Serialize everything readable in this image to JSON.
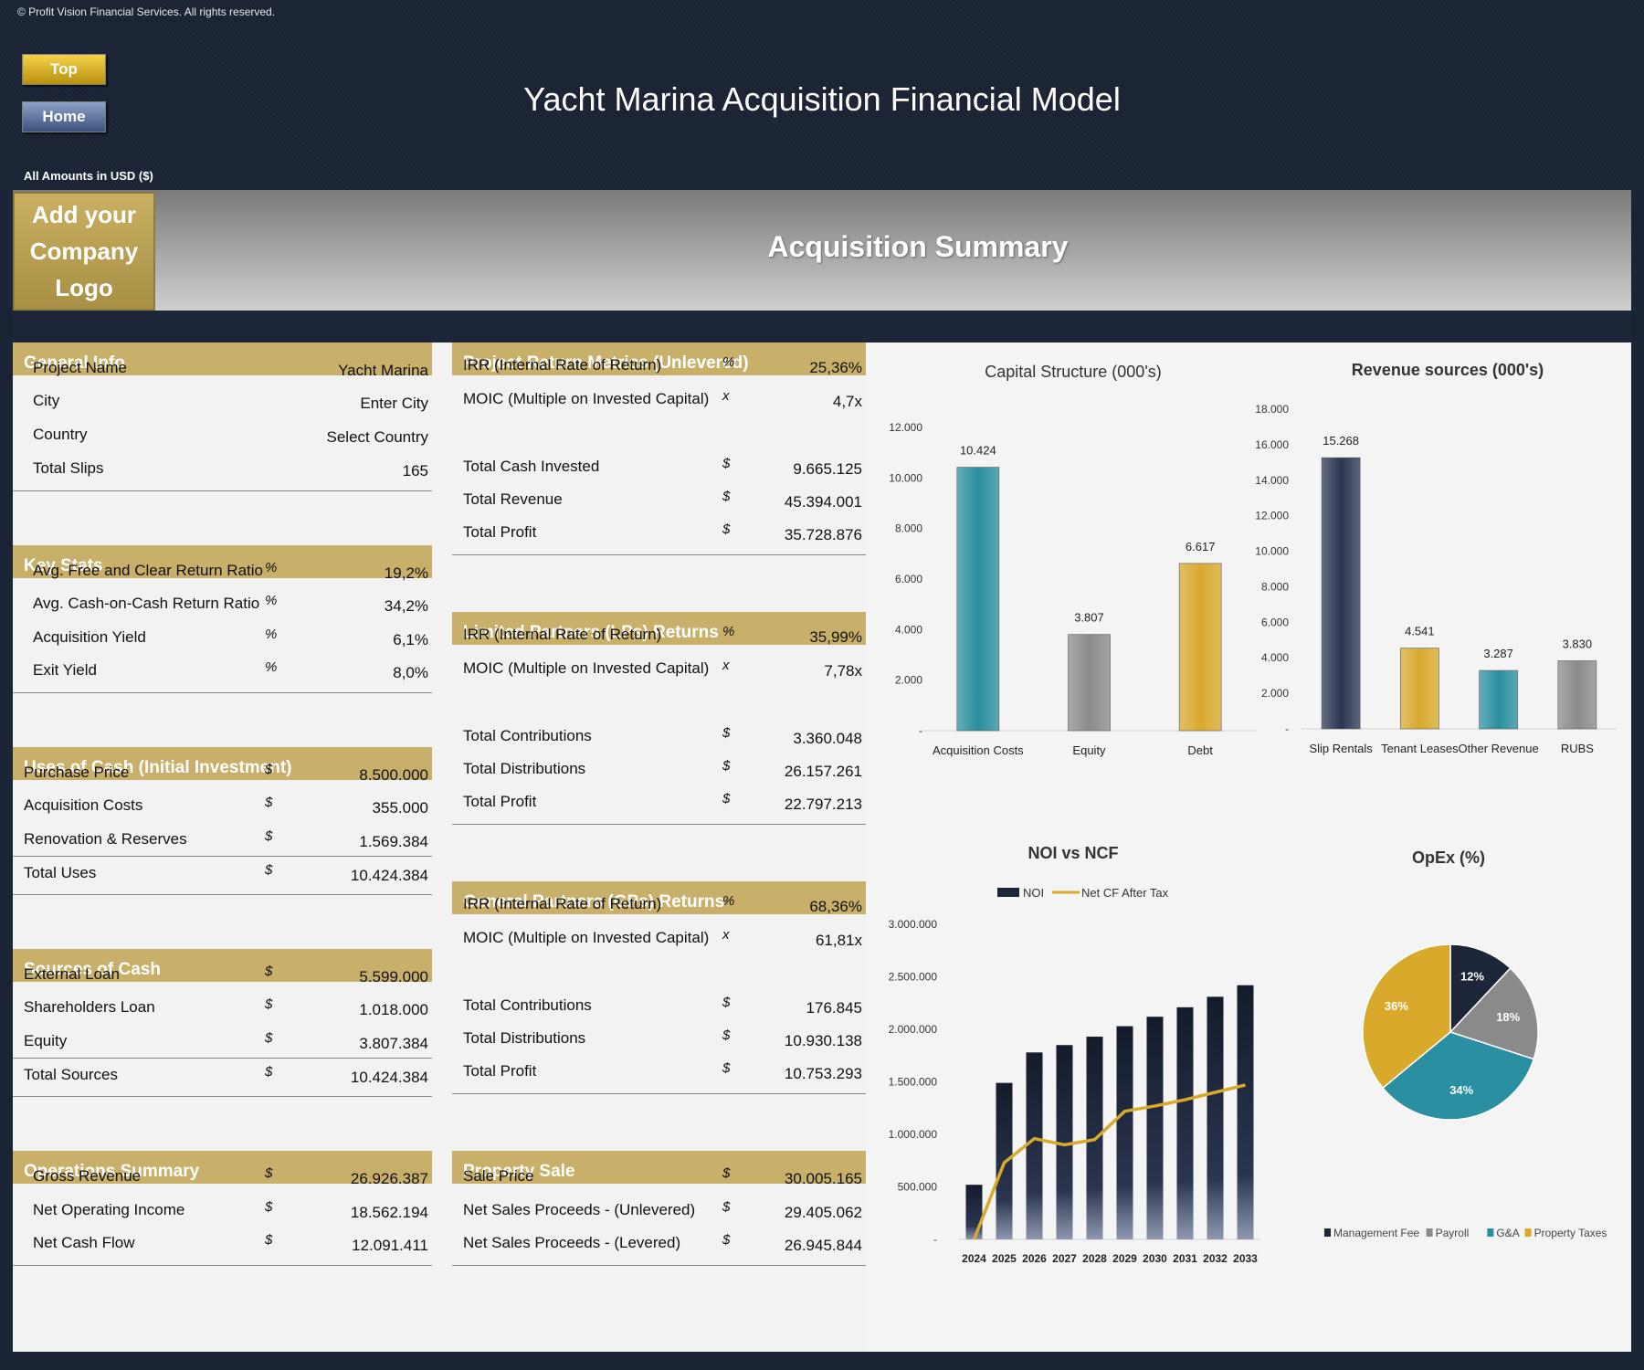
{
  "header": {
    "copyright": "© Profit Vision Financial Services. All rights reserved.",
    "top_button": "Top",
    "home_button": "Home",
    "title": "Yacht Marina Acquisition Financial Model",
    "amounts_note": "All Amounts in  USD ($)"
  },
  "banner": {
    "logo_text": "Add your Company Logo",
    "section_title": "Acquisition Summary"
  },
  "general_info": {
    "title": "General Info",
    "rows": [
      {
        "label": "Project Name",
        "unit": "",
        "value": "Yacht Marina"
      },
      {
        "label": "City",
        "unit": "",
        "value": "Enter City"
      },
      {
        "label": "Country",
        "unit": "",
        "value": "Select Country"
      },
      {
        "label": "Total Slips",
        "unit": "",
        "value": "165"
      }
    ]
  },
  "key_stats": {
    "title": "Key Stats",
    "rows": [
      {
        "label": "Avg. Free and Clear Return Ratio",
        "unit": "%",
        "value": "19,2%"
      },
      {
        "label": "Avg. Cash-on-Cash Return Ratio",
        "unit": "%",
        "value": "34,2%"
      },
      {
        "label": "Acquisition Yield",
        "unit": "%",
        "value": "6,1%"
      },
      {
        "label": "Exit Yield",
        "unit": "%",
        "value": "8,0%"
      }
    ]
  },
  "uses_of_cash": {
    "title": "Uses of Cash (Initial Investment)",
    "rows": [
      {
        "label": "Purchase Price",
        "unit": "$",
        "value": "8.500.000"
      },
      {
        "label": "Acquisition Costs",
        "unit": "$",
        "value": "355.000"
      },
      {
        "label": "Renovation & Reserves",
        "unit": "$",
        "value": "1.569.384"
      },
      {
        "label": "Total Uses",
        "unit": "$",
        "value": "10.424.384"
      }
    ]
  },
  "sources_of_cash": {
    "title": "Sources of Cash",
    "rows": [
      {
        "label": "External Loan",
        "unit": "$",
        "value": "5.599.000"
      },
      {
        "label": "Shareholders Loan",
        "unit": "$",
        "value": "1.018.000"
      },
      {
        "label": "Equity",
        "unit": "$",
        "value": "3.807.384"
      },
      {
        "label": "Total Sources",
        "unit": "$",
        "value": "10.424.384"
      }
    ]
  },
  "operations_summary": {
    "title": "Operations Summary",
    "rows": [
      {
        "label": "Gross Revenue",
        "unit": "$",
        "value": "26.926.387"
      },
      {
        "label": "Net Operating Income",
        "unit": "$",
        "value": "18.562.194"
      },
      {
        "label": "Net Cash Flow",
        "unit": "$",
        "value": "12.091.411"
      }
    ]
  },
  "project_returns": {
    "title": "Project Return Metrics (Unlevered)",
    "rows": [
      {
        "label": "IRR (Internal Rate of Return)",
        "unit": "%",
        "value": "25,36%"
      },
      {
        "label": "MOIC (Multiple on Invested Capital)",
        "unit": "x",
        "value": "4,7x"
      },
      {
        "label": "Total Cash Invested",
        "unit": "$",
        "value": "9.665.125"
      },
      {
        "label": "Total Revenue",
        "unit": "$",
        "value": "45.394.001"
      },
      {
        "label": "Total Profit",
        "unit": "$",
        "value": "35.728.876"
      }
    ]
  },
  "lp_returns": {
    "title": "Limited Partners (LPs) Returns",
    "rows": [
      {
        "label": "IRR (Internal Rate of Return)",
        "unit": "%",
        "value": "35,99%"
      },
      {
        "label": "MOIC (Multiple on Invested Capital)",
        "unit": "x",
        "value": "7,78x"
      },
      {
        "label": "Total Contributions",
        "unit": "$",
        "value": "3.360.048"
      },
      {
        "label": "Total Distributions",
        "unit": "$",
        "value": "26.157.261"
      },
      {
        "label": "Total Profit",
        "unit": "$",
        "value": "22.797.213"
      }
    ]
  },
  "gp_returns": {
    "title": "General Partners (GPs) Returns",
    "rows": [
      {
        "label": "IRR (Internal Rate of Return)",
        "unit": "%",
        "value": "68,36%"
      },
      {
        "label": "MOIC (Multiple on Invested Capital)",
        "unit": "x",
        "value": "61,81x"
      },
      {
        "label": "Total Contributions",
        "unit": "$",
        "value": "176.845"
      },
      {
        "label": "Total Distributions",
        "unit": "$",
        "value": "10.930.138"
      },
      {
        "label": "Total Profit",
        "unit": "$",
        "value": "10.753.293"
      }
    ]
  },
  "property_sale": {
    "title": "Property Sale",
    "rows": [
      {
        "label": "Sale Price",
        "unit": "$",
        "value": "30.005.165"
      },
      {
        "label": "Net Sales Proceeds - (Unlevered)",
        "unit": "$",
        "value": "29.405.062"
      },
      {
        "label": "Net Sales Proceeds - (Levered)",
        "unit": "$",
        "value": "26.945.844"
      }
    ]
  },
  "chart_data": [
    {
      "type": "bar",
      "title": "Capital Structure (000's)",
      "categories": [
        "Acquisition Costs",
        "Equity",
        "Debt"
      ],
      "values": [
        10424,
        3807,
        6617
      ],
      "value_labels": [
        "10.424",
        "3.807",
        "6.617"
      ],
      "ylim": [
        0,
        12000
      ],
      "yticks": [
        "-",
        "2.000",
        "4.000",
        "6.000",
        "8.000",
        "10.000",
        "12.000"
      ],
      "colors": [
        "#2a8fa0",
        "#8a8a8a",
        "#d9a92c"
      ]
    },
    {
      "type": "bar",
      "title": "Revenue sources (000's)",
      "categories": [
        "Slip Rentals",
        "Tenant Leases",
        "Other Revenue",
        "RUBS"
      ],
      "values": [
        15268,
        4541,
        3287,
        3830
      ],
      "value_labels": [
        "15.268",
        "4.541",
        "3.287",
        "3.830"
      ],
      "ylim": [
        0,
        18000
      ],
      "yticks": [
        "-",
        "2.000",
        "4.000",
        "6.000",
        "8.000",
        "10.000",
        "12.000",
        "14.000",
        "16.000",
        "18.000"
      ],
      "colors": [
        "#2b3550",
        "#d9a92c",
        "#2a8fa0",
        "#8a8a8a"
      ]
    },
    {
      "type": "bar",
      "title": "NOI vs NCF",
      "categories": [
        "2024",
        "2025",
        "2026",
        "2027",
        "2028",
        "2029",
        "2030",
        "2031",
        "2032",
        "2033"
      ],
      "series": [
        {
          "name": "NOI",
          "type": "bar",
          "values": [
            520000,
            1490000,
            1780000,
            1850000,
            1930000,
            2030000,
            2120000,
            2210000,
            2310000,
            2420000
          ]
        },
        {
          "name": "Net CF After Tax",
          "type": "line",
          "values": [
            -10000,
            730000,
            960000,
            900000,
            950000,
            1220000,
            1270000,
            1330000,
            1400000,
            1470000
          ]
        }
      ],
      "ylim": [
        0,
        3000000
      ],
      "yticks": [
        "-",
        "500.000",
        "1.000.000",
        "1.500.000",
        "2.000.000",
        "2.500.000",
        "3.000.000"
      ],
      "colors": [
        "#1c2638",
        "#d9a92c"
      ]
    },
    {
      "type": "pie",
      "title": "OpEx (%)",
      "labels": [
        "Management Fee",
        "Payroll",
        "G&A",
        "Property Taxes"
      ],
      "values": [
        12,
        18,
        34,
        36
      ],
      "value_labels": [
        "12%",
        "18%",
        "34%",
        "36%"
      ],
      "colors": [
        "#1c2638",
        "#8a8a8a",
        "#2a8fa0",
        "#d9a92c"
      ]
    }
  ]
}
